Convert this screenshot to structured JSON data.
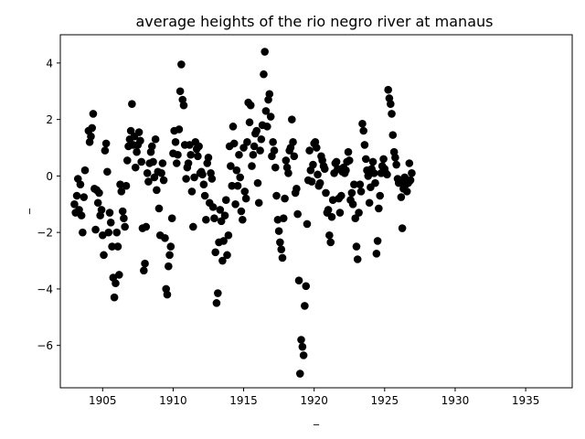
{
  "chart_data": {
    "type": "scatter",
    "title": "average heights of the rio negro river at manaus",
    "xlabel": "_",
    "ylabel": "_",
    "xlim": [
      1902,
      1938.3
    ],
    "ylim": [
      -7.5,
      5.0
    ],
    "xticks": [
      1905,
      1910,
      1915,
      1920,
      1925,
      1930,
      1935
    ],
    "yticks": [
      -6,
      -4,
      -2,
      0,
      2,
      4
    ],
    "grid": false,
    "legend": "none",
    "marker_color": "#000000",
    "points": [
      [
        1903.0,
        -1.0
      ],
      [
        1903.08,
        -1.3
      ],
      [
        1903.17,
        -0.7
      ],
      [
        1903.25,
        -0.1
      ],
      [
        1903.33,
        -1.2
      ],
      [
        1903.42,
        -0.3
      ],
      [
        1903.5,
        -1.4
      ],
      [
        1903.58,
        -2.0
      ],
      [
        1903.67,
        -0.75
      ],
      [
        1903.75,
        0.2
      ],
      [
        1904.0,
        1.6
      ],
      [
        1904.08,
        1.2
      ],
      [
        1904.17,
        1.4
      ],
      [
        1904.25,
        1.7
      ],
      [
        1904.33,
        2.2
      ],
      [
        1904.42,
        -0.45
      ],
      [
        1904.5,
        -1.9
      ],
      [
        1904.58,
        -0.5
      ],
      [
        1904.67,
        -0.95
      ],
      [
        1904.75,
        -0.6
      ],
      [
        1904.83,
        -1.4
      ],
      [
        1904.92,
        -1.2
      ],
      [
        1905.0,
        -2.1
      ],
      [
        1905.08,
        -2.8
      ],
      [
        1905.17,
        0.9
      ],
      [
        1905.25,
        1.15
      ],
      [
        1905.33,
        0.15
      ],
      [
        1905.42,
        -2.0
      ],
      [
        1905.5,
        -1.3
      ],
      [
        1905.58,
        -1.65
      ],
      [
        1905.67,
        -2.5
      ],
      [
        1905.75,
        -3.6
      ],
      [
        1905.83,
        -4.3
      ],
      [
        1905.92,
        -3.8
      ],
      [
        1906.0,
        -2.0
      ],
      [
        1906.08,
        -2.5
      ],
      [
        1906.17,
        -3.5
      ],
      [
        1906.25,
        -0.3
      ],
      [
        1906.33,
        -0.55
      ],
      [
        1906.42,
        -1.25
      ],
      [
        1906.5,
        -1.5
      ],
      [
        1906.58,
        -1.8
      ],
      [
        1906.67,
        -0.35
      ],
      [
        1906.75,
        0.55
      ],
      [
        1906.83,
        1.05
      ],
      [
        1906.92,
        1.3
      ],
      [
        1907.0,
        1.6
      ],
      [
        1907.08,
        2.55
      ],
      [
        1907.17,
        1.1
      ],
      [
        1907.25,
        1.4
      ],
      [
        1907.33,
        0.3
      ],
      [
        1907.42,
        0.85
      ],
      [
        1907.5,
        1.1
      ],
      [
        1907.58,
        1.55
      ],
      [
        1907.67,
        1.25
      ],
      [
        1907.75,
        0.5
      ],
      [
        1907.83,
        -1.85
      ],
      [
        1907.92,
        -3.35
      ],
      [
        1908.0,
        -3.1
      ],
      [
        1908.08,
        -1.8
      ],
      [
        1908.17,
        0.1
      ],
      [
        1908.25,
        -0.2
      ],
      [
        1908.33,
        0.45
      ],
      [
        1908.42,
        0.85
      ],
      [
        1908.5,
        1.05
      ],
      [
        1908.58,
        0.5
      ],
      [
        1908.67,
        -0.05
      ],
      [
        1908.75,
        1.3
      ],
      [
        1908.83,
        -0.5
      ],
      [
        1908.92,
        0.15
      ],
      [
        1909.0,
        -1.15
      ],
      [
        1909.08,
        -2.1
      ],
      [
        1909.17,
        0.1
      ],
      [
        1909.25,
        0.45
      ],
      [
        1909.33,
        -0.15
      ],
      [
        1909.42,
        -2.2
      ],
      [
        1909.5,
        -4.0
      ],
      [
        1909.58,
        -4.2
      ],
      [
        1909.67,
        -3.2
      ],
      [
        1909.75,
        -2.8
      ],
      [
        1909.83,
        -2.5
      ],
      [
        1909.92,
        -1.5
      ],
      [
        1910.0,
        0.8
      ],
      [
        1910.08,
        1.6
      ],
      [
        1910.17,
        1.2
      ],
      [
        1910.25,
        0.45
      ],
      [
        1910.33,
        0.75
      ],
      [
        1910.42,
        1.65
      ],
      [
        1910.5,
        3.0
      ],
      [
        1910.58,
        3.95
      ],
      [
        1910.67,
        2.7
      ],
      [
        1910.75,
        2.5
      ],
      [
        1910.83,
        1.1
      ],
      [
        1910.92,
        -0.1
      ],
      [
        1911.0,
        0.3
      ],
      [
        1911.08,
        0.45
      ],
      [
        1911.17,
        1.1
      ],
      [
        1911.25,
        0.75
      ],
      [
        1911.33,
        -0.55
      ],
      [
        1911.42,
        -1.8
      ],
      [
        1911.5,
        -0.05
      ],
      [
        1911.58,
        1.2
      ],
      [
        1911.67,
        0.95
      ],
      [
        1911.75,
        0.7
      ],
      [
        1911.83,
        1.05
      ],
      [
        1911.92,
        0.1
      ],
      [
        1912.0,
        0.15
      ],
      [
        1912.08,
        0.05
      ],
      [
        1912.17,
        -0.3
      ],
      [
        1912.25,
        -0.7
      ],
      [
        1912.33,
        -1.55
      ],
      [
        1912.42,
        0.45
      ],
      [
        1912.5,
        0.65
      ],
      [
        1912.58,
        -0.95
      ],
      [
        1912.67,
        0.1
      ],
      [
        1912.75,
        -0.1
      ],
      [
        1912.83,
        -1.1
      ],
      [
        1912.92,
        -1.5
      ],
      [
        1913.0,
        -2.7
      ],
      [
        1913.08,
        -4.5
      ],
      [
        1913.17,
        -4.15
      ],
      [
        1913.25,
        -2.35
      ],
      [
        1913.33,
        -1.2
      ],
      [
        1913.42,
        -1.6
      ],
      [
        1913.5,
        -3.0
      ],
      [
        1913.58,
        -2.3
      ],
      [
        1913.67,
        -1.4
      ],
      [
        1913.75,
        -0.85
      ],
      [
        1913.83,
        -2.8
      ],
      [
        1913.92,
        -2.1
      ],
      [
        1914.0,
        1.05
      ],
      [
        1914.08,
        0.35
      ],
      [
        1914.17,
        -0.35
      ],
      [
        1914.25,
        1.75
      ],
      [
        1914.33,
        1.15
      ],
      [
        1914.42,
        -1.0
      ],
      [
        1914.5,
        0.2
      ],
      [
        1914.58,
        -0.35
      ],
      [
        1914.67,
        0.75
      ],
      [
        1914.75,
        -0.05
      ],
      [
        1914.83,
        -1.25
      ],
      [
        1914.92,
        -1.55
      ],
      [
        1915.0,
        1.0
      ],
      [
        1915.08,
        -0.55
      ],
      [
        1915.17,
        -0.8
      ],
      [
        1915.25,
        1.2
      ],
      [
        1915.33,
        2.6
      ],
      [
        1915.42,
        1.9
      ],
      [
        1915.5,
        2.5
      ],
      [
        1915.58,
        0.35
      ],
      [
        1915.67,
        0.75
      ],
      [
        1915.75,
        1.05
      ],
      [
        1915.83,
        1.5
      ],
      [
        1915.92,
        1.6
      ],
      [
        1916.0,
        -0.25
      ],
      [
        1916.08,
        -0.95
      ],
      [
        1916.17,
        0.9
      ],
      [
        1916.25,
        1.3
      ],
      [
        1916.33,
        1.8
      ],
      [
        1916.42,
        3.6
      ],
      [
        1916.5,
        4.4
      ],
      [
        1916.58,
        2.3
      ],
      [
        1916.67,
        1.75
      ],
      [
        1916.75,
        2.7
      ],
      [
        1916.83,
        2.9
      ],
      [
        1916.92,
        2.1
      ],
      [
        1917.0,
        0.7
      ],
      [
        1917.08,
        1.2
      ],
      [
        1917.17,
        0.9
      ],
      [
        1917.25,
        0.3
      ],
      [
        1917.33,
        -0.7
      ],
      [
        1917.42,
        -1.55
      ],
      [
        1917.5,
        -1.95
      ],
      [
        1917.58,
        -2.35
      ],
      [
        1917.67,
        -2.6
      ],
      [
        1917.75,
        -2.9
      ],
      [
        1917.83,
        -1.5
      ],
      [
        1917.92,
        -0.8
      ],
      [
        1918.0,
        0.55
      ],
      [
        1918.08,
        0.3
      ],
      [
        1918.17,
        0.1
      ],
      [
        1918.25,
        0.9
      ],
      [
        1918.33,
        1.0
      ],
      [
        1918.42,
        2.0
      ],
      [
        1918.5,
        1.2
      ],
      [
        1918.58,
        0.7
      ],
      [
        1918.67,
        -0.6
      ],
      [
        1918.75,
        -0.45
      ],
      [
        1918.83,
        -1.35
      ],
      [
        1918.92,
        -3.7
      ],
      [
        1919.0,
        -7.0
      ],
      [
        1919.08,
        -5.8
      ],
      [
        1919.17,
        -6.05
      ],
      [
        1919.25,
        -6.35
      ],
      [
        1919.33,
        -4.6
      ],
      [
        1919.42,
        -3.9
      ],
      [
        1919.5,
        -1.7
      ],
      [
        1919.58,
        -0.15
      ],
      [
        1919.67,
        0.9
      ],
      [
        1919.75,
        0.2
      ],
      [
        1919.83,
        -0.2
      ],
      [
        1919.92,
        0.4
      ],
      [
        1920.0,
        1.15
      ],
      [
        1920.08,
        1.2
      ],
      [
        1920.17,
        1.0
      ],
      [
        1920.25,
        0.05
      ],
      [
        1920.33,
        -0.35
      ],
      [
        1920.42,
        -0.25
      ],
      [
        1920.5,
        0.7
      ],
      [
        1920.58,
        0.55
      ],
      [
        1920.67,
        0.35
      ],
      [
        1920.75,
        0.25
      ],
      [
        1920.83,
        -0.6
      ],
      [
        1920.92,
        -1.3
      ],
      [
        1921.0,
        -1.2
      ],
      [
        1921.08,
        -2.1
      ],
      [
        1921.17,
        -2.35
      ],
      [
        1921.25,
        -1.45
      ],
      [
        1921.33,
        -0.85
      ],
      [
        1921.42,
        0.1
      ],
      [
        1921.5,
        0.45
      ],
      [
        1921.58,
        0.5
      ],
      [
        1921.67,
        0.25
      ],
      [
        1921.75,
        -0.8
      ],
      [
        1921.83,
        -1.3
      ],
      [
        1921.92,
        -0.7
      ],
      [
        1922.0,
        0.15
      ],
      [
        1922.08,
        0.3
      ],
      [
        1922.17,
        0.1
      ],
      [
        1922.25,
        0.2
      ],
      [
        1922.33,
        0.5
      ],
      [
        1922.42,
        0.85
      ],
      [
        1922.5,
        0.55
      ],
      [
        1922.58,
        -0.85
      ],
      [
        1922.67,
        -0.6
      ],
      [
        1922.75,
        -1.0
      ],
      [
        1922.83,
        -0.3
      ],
      [
        1922.92,
        -1.5
      ],
      [
        1923.0,
        -2.5
      ],
      [
        1923.08,
        -2.95
      ],
      [
        1923.17,
        -1.3
      ],
      [
        1923.25,
        -0.3
      ],
      [
        1923.33,
        -0.55
      ],
      [
        1923.42,
        1.85
      ],
      [
        1923.5,
        1.6
      ],
      [
        1923.58,
        1.1
      ],
      [
        1923.67,
        0.6
      ],
      [
        1923.75,
        0.2
      ],
      [
        1923.83,
        0.0
      ],
      [
        1923.92,
        -0.95
      ],
      [
        1924.0,
        -0.4
      ],
      [
        1924.08,
        0.25
      ],
      [
        1924.17,
        0.5
      ],
      [
        1924.25,
        0.1
      ],
      [
        1924.33,
        -0.25
      ],
      [
        1924.42,
        -2.75
      ],
      [
        1924.5,
        -2.3
      ],
      [
        1924.58,
        -1.15
      ],
      [
        1924.67,
        -0.7
      ],
      [
        1924.75,
        0.1
      ],
      [
        1924.83,
        0.35
      ],
      [
        1924.92,
        0.6
      ],
      [
        1925.0,
        0.25
      ],
      [
        1925.08,
        0.1
      ],
      [
        1925.17,
        0.05
      ],
      [
        1925.25,
        3.05
      ],
      [
        1925.33,
        2.75
      ],
      [
        1925.42,
        2.55
      ],
      [
        1925.5,
        2.2
      ],
      [
        1925.58,
        1.45
      ],
      [
        1925.67,
        0.85
      ],
      [
        1925.75,
        0.65
      ],
      [
        1925.83,
        0.4
      ],
      [
        1925.92,
        -0.1
      ],
      [
        1926.0,
        -0.25
      ],
      [
        1926.08,
        -0.2
      ],
      [
        1926.17,
        -0.75
      ],
      [
        1926.25,
        -1.85
      ],
      [
        1926.33,
        -0.45
      ],
      [
        1926.42,
        -0.05
      ],
      [
        1926.5,
        -0.3
      ],
      [
        1926.58,
        -0.55
      ],
      [
        1926.67,
        -0.25
      ],
      [
        1926.75,
        0.45
      ],
      [
        1926.83,
        -0.15
      ],
      [
        1926.92,
        0.1
      ]
    ]
  }
}
